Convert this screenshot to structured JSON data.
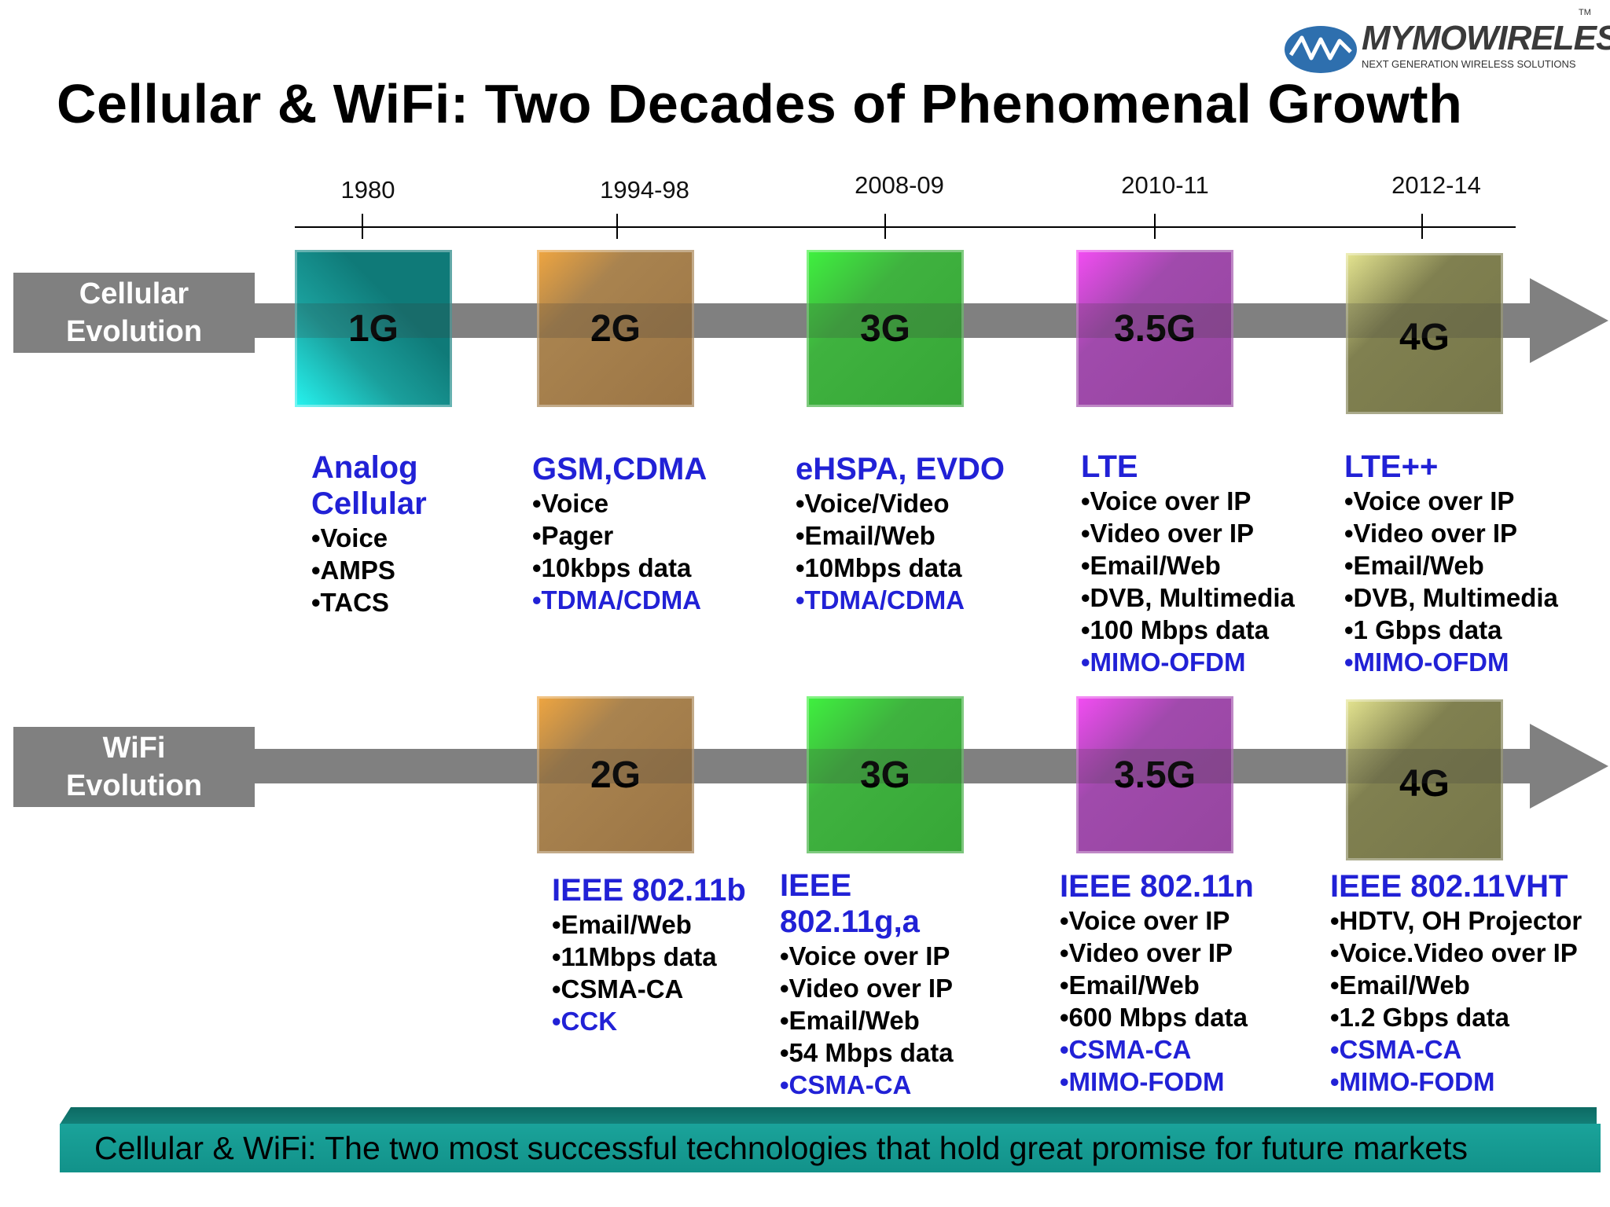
{
  "logo": {
    "name": "MYMOWIRELESS",
    "tagline": "NEXT GENERATION WIRELESS SOLUTIONS",
    "tm": "TM"
  },
  "title": "Cellular & WiFi: Two Decades of Phenomenal Growth",
  "timeline": {
    "years": [
      "1980",
      "1994-98",
      "2008-09",
      "2010-11",
      "2012-14"
    ]
  },
  "cellular": {
    "label": "Cellular\nEvolution",
    "boxes": [
      "1G",
      "2G",
      "3G",
      "3.5G",
      "4G"
    ],
    "descriptions": [
      {
        "title": "Analog\nCellular",
        "items": [
          "•Voice",
          "•AMPS",
          "•TACS"
        ],
        "highlight": ""
      },
      {
        "title": "GSM,CDMA",
        "items": [
          "•Voice",
          "•Pager",
          "•10kbps data"
        ],
        "highlight": "•TDMA/CDMA"
      },
      {
        "title": "eHSPA, EVDO",
        "items": [
          "•Voice/Video",
          "•Email/Web",
          "•10Mbps data"
        ],
        "highlight": "•TDMA/CDMA"
      },
      {
        "title": "LTE",
        "items": [
          "•Voice over IP",
          "•Video over IP",
          "•Email/Web",
          "•DVB, Multimedia",
          "•100 Mbps data"
        ],
        "highlight": "•MIMO-OFDM"
      },
      {
        "title": "LTE++",
        "items": [
          "•Voice over IP",
          "•Video over IP",
          "•Email/Web",
          "•DVB, Multimedia",
          "•1 Gbps data"
        ],
        "highlight": "•MIMO-OFDM"
      }
    ]
  },
  "wifi": {
    "label": "WiFi\nEvolution",
    "boxes": [
      "2G",
      "3G",
      "3.5G",
      "4G"
    ],
    "descriptions": [
      {
        "title": "IEEE 802.11b",
        "items": [
          "•Email/Web",
          "•11Mbps data",
          "•CSMA-CA"
        ],
        "highlight": "•CCK"
      },
      {
        "title": "IEEE\n802.11g,a",
        "items": [
          "•Voice over IP",
          "•Video over IP",
          "•Email/Web",
          "•54 Mbps data"
        ],
        "highlight": "•CSMA-CA"
      },
      {
        "title": "IEEE 802.11n",
        "items": [
          "•Voice over IP",
          "•Video over IP",
          "•Email/Web",
          "•600 Mbps data"
        ],
        "highlight": "•CSMA-CA",
        "highlight2": "•MIMO-FODM"
      },
      {
        "title": "IEEE 802.11VHT",
        "items": [
          "•HDTV, OH Projector",
          "•Voice.Video over IP",
          "•Email/Web",
          "•1.2 Gbps data"
        ],
        "highlight": "•CSMA-CA",
        "highlight2": "•MIMO-FODM"
      }
    ]
  },
  "footer": {
    "text": "Cellular & WiFi: The two most successful technologies that hold great promise for future markets"
  },
  "colors": {
    "accent_blue": "#2121d6",
    "band_gray": "#808080",
    "footer_teal": "#12928a"
  }
}
